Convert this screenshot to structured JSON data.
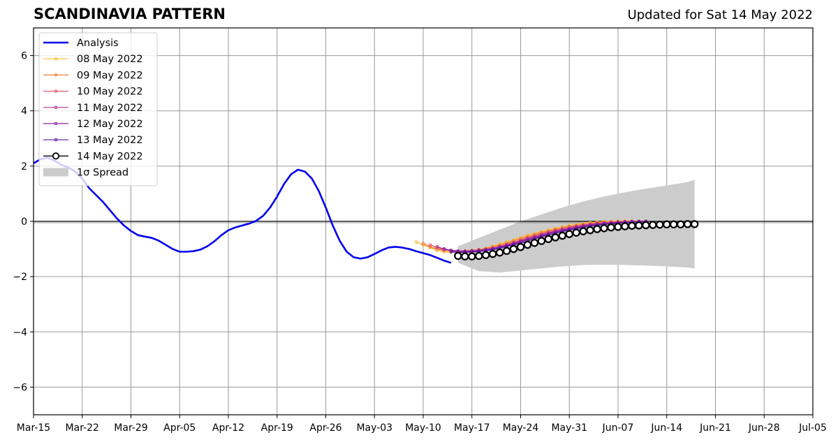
{
  "chart_data": {
    "type": "line",
    "title": "SCANDINAVIA PATTERN",
    "subtitle": "Updated for Sat 14 May 2022",
    "xlabel": "",
    "ylabel": "",
    "ylim": [
      -7,
      7
    ],
    "xlim": [
      "2022-03-15",
      "2022-07-05"
    ],
    "grid": true,
    "legend_position": "top-left",
    "x_tick_labels": [
      "Mar-15",
      "Mar-22",
      "Mar-29",
      "Apr-05",
      "Apr-12",
      "Apr-19",
      "Apr-26",
      "May-03",
      "May-10",
      "May-17",
      "May-24",
      "May-31",
      "Jun-07",
      "Jun-14",
      "Jun-21",
      "Jun-28",
      "Jul-05"
    ],
    "y_ticks": [
      -6,
      -4,
      -2,
      0,
      2,
      4,
      6
    ],
    "y_tick_labels": [
      "−6",
      "−4",
      "−2",
      "0",
      "2",
      "4",
      "6"
    ],
    "analysis": {
      "name": "Analysis",
      "color": "#0000ee",
      "x": [
        "2022-03-15",
        "2022-03-16",
        "2022-03-17",
        "2022-03-18",
        "2022-03-19",
        "2022-03-20",
        "2022-03-21",
        "2022-03-22",
        "2022-03-23",
        "2022-03-24",
        "2022-03-25",
        "2022-03-26",
        "2022-03-27",
        "2022-03-28",
        "2022-03-29",
        "2022-03-30",
        "2022-03-31",
        "2022-04-01",
        "2022-04-02",
        "2022-04-03",
        "2022-04-04",
        "2022-04-05",
        "2022-04-06",
        "2022-04-07",
        "2022-04-08",
        "2022-04-09",
        "2022-04-10",
        "2022-04-11",
        "2022-04-12",
        "2022-04-13",
        "2022-04-14",
        "2022-04-15",
        "2022-04-16",
        "2022-04-17",
        "2022-04-18",
        "2022-04-19",
        "2022-04-20",
        "2022-04-21",
        "2022-04-22",
        "2022-04-23",
        "2022-04-24",
        "2022-04-25",
        "2022-04-26",
        "2022-04-27",
        "2022-04-28",
        "2022-04-29",
        "2022-04-30",
        "2022-05-01",
        "2022-05-02",
        "2022-05-03",
        "2022-05-04",
        "2022-05-05",
        "2022-05-06",
        "2022-05-07",
        "2022-05-08",
        "2022-05-09",
        "2022-05-10",
        "2022-05-11",
        "2022-05-12",
        "2022-05-13",
        "2022-05-14"
      ],
      "y": [
        2.1,
        2.25,
        2.3,
        2.2,
        2.05,
        1.95,
        1.8,
        1.55,
        1.2,
        0.95,
        0.7,
        0.4,
        0.1,
        -0.15,
        -0.35,
        -0.5,
        -0.55,
        -0.6,
        -0.7,
        -0.85,
        -1.0,
        -1.1,
        -1.1,
        -1.08,
        -1.02,
        -0.9,
        -0.72,
        -0.5,
        -0.32,
        -0.22,
        -0.15,
        -0.08,
        0.02,
        0.2,
        0.5,
        0.9,
        1.35,
        1.7,
        1.87,
        1.8,
        1.55,
        1.1,
        0.5,
        -0.15,
        -0.7,
        -1.1,
        -1.3,
        -1.35,
        -1.3,
        -1.18,
        -1.05,
        -0.95,
        -0.92,
        -0.95,
        -1.0,
        -1.08,
        -1.15,
        -1.22,
        -1.32,
        -1.42,
        -1.5
      ]
    },
    "forecasts": [
      {
        "name": "08 May 2022",
        "color": "#fcb930",
        "start": "2022-05-09",
        "y": [
          -0.75,
          -0.85,
          -0.95,
          -1.05,
          -1.1,
          -1.12,
          -1.12,
          -1.1,
          -1.07,
          -1.02,
          -0.97,
          -0.9,
          -0.83,
          -0.75,
          -0.67,
          -0.59,
          -0.51,
          -0.44,
          -0.37,
          -0.31,
          -0.25,
          -0.2,
          -0.15,
          -0.11,
          -0.08,
          -0.05,
          -0.03,
          -0.01,
          0.0,
          0.01,
          0.01,
          0.01,
          0.0,
          0.0
        ]
      },
      {
        "name": "09 May 2022",
        "color": "#f27e3c",
        "start": "2022-05-10",
        "y": [
          -0.8,
          -0.92,
          -1.0,
          -1.05,
          -1.07,
          -1.08,
          -1.07,
          -1.05,
          -1.02,
          -0.98,
          -0.92,
          -0.86,
          -0.79,
          -0.71,
          -0.63,
          -0.55,
          -0.48,
          -0.41,
          -0.35,
          -0.29,
          -0.24,
          -0.19,
          -0.15,
          -0.11,
          -0.08,
          -0.05,
          -0.03,
          -0.02,
          -0.01,
          0.0,
          0.0,
          0.0,
          0.0
        ]
      },
      {
        "name": "10 May 2022",
        "color": "#dd5a6e",
        "start": "2022-05-11",
        "y": [
          -0.85,
          -0.95,
          -1.02,
          -1.06,
          -1.08,
          -1.08,
          -1.06,
          -1.04,
          -1.01,
          -0.96,
          -0.9,
          -0.83,
          -0.76,
          -0.68,
          -0.6,
          -0.52,
          -0.45,
          -0.38,
          -0.32,
          -0.26,
          -0.21,
          -0.17,
          -0.13,
          -0.1,
          -0.07,
          -0.05,
          -0.03,
          -0.02,
          -0.01,
          0.0,
          0.0,
          0.0
        ]
      },
      {
        "name": "11 May 2022",
        "color": "#b8358b",
        "start": "2022-05-12",
        "y": [
          -0.92,
          -1.0,
          -1.05,
          -1.07,
          -1.08,
          -1.07,
          -1.05,
          -1.02,
          -0.98,
          -0.92,
          -0.86,
          -0.79,
          -0.71,
          -0.63,
          -0.56,
          -0.49,
          -0.42,
          -0.36,
          -0.3,
          -0.25,
          -0.2,
          -0.16,
          -0.12,
          -0.09,
          -0.07,
          -0.05,
          -0.03,
          -0.02,
          -0.01,
          0.0,
          0.0
        ]
      },
      {
        "name": "12 May 2022",
        "color": "#8b1fa0",
        "start": "2022-05-13",
        "y": [
          -1.0,
          -1.05,
          -1.08,
          -1.09,
          -1.08,
          -1.06,
          -1.03,
          -0.99,
          -0.94,
          -0.88,
          -0.81,
          -0.74,
          -0.66,
          -0.59,
          -0.52,
          -0.45,
          -0.39,
          -0.33,
          -0.28,
          -0.23,
          -0.18,
          -0.14,
          -0.11,
          -0.08,
          -0.06,
          -0.04,
          -0.03,
          -0.02,
          -0.01,
          0.0
        ]
      },
      {
        "name": "13 May 2022",
        "color": "#5a14a0",
        "start": "2022-05-14",
        "y": [
          -1.1,
          -1.12,
          -1.12,
          -1.11,
          -1.09,
          -1.06,
          -1.02,
          -0.97,
          -0.91,
          -0.85,
          -0.78,
          -0.71,
          -0.63,
          -0.56,
          -0.49,
          -0.43,
          -0.37,
          -0.31,
          -0.26,
          -0.22,
          -0.18,
          -0.14,
          -0.11,
          -0.09,
          -0.07,
          -0.05,
          -0.04,
          -0.03,
          -0.02
        ]
      },
      {
        "name": "14 May 2022",
        "color": "#000000",
        "start": "2022-05-15",
        "markers": true,
        "y": [
          -1.25,
          -1.27,
          -1.27,
          -1.25,
          -1.22,
          -1.18,
          -1.13,
          -1.07,
          -1.0,
          -0.93,
          -0.85,
          -0.78,
          -0.71,
          -0.64,
          -0.58,
          -0.52,
          -0.46,
          -0.41,
          -0.36,
          -0.32,
          -0.28,
          -0.25,
          -0.22,
          -0.2,
          -0.18,
          -0.16,
          -0.15,
          -0.14,
          -0.13,
          -0.12,
          -0.11,
          -0.11,
          -0.11,
          -0.1,
          -0.1
        ]
      }
    ],
    "spread": {
      "name": "1σ Spread",
      "color": "#cccccc",
      "x": [
        "2022-05-15",
        "2022-05-18",
        "2022-05-21",
        "2022-05-24",
        "2022-05-27",
        "2022-05-30",
        "2022-06-02",
        "2022-06-05",
        "2022-06-08",
        "2022-06-11",
        "2022-06-14",
        "2022-06-17",
        "2022-06-18"
      ],
      "upper": [
        -0.9,
        -0.6,
        -0.3,
        0.0,
        0.25,
        0.5,
        0.72,
        0.9,
        1.05,
        1.18,
        1.3,
        1.42,
        1.5
      ],
      "lower": [
        -1.5,
        -1.8,
        -1.85,
        -1.78,
        -1.7,
        -1.63,
        -1.58,
        -1.57,
        -1.58,
        -1.6,
        -1.63,
        -1.67,
        -1.7
      ]
    }
  },
  "legend": {
    "items": [
      "Analysis",
      "08 May 2022",
      "09 May 2022",
      "10 May 2022",
      "11 May 2022",
      "12 May 2022",
      "13 May 2022",
      "14 May 2022",
      "1σ Spread"
    ]
  }
}
